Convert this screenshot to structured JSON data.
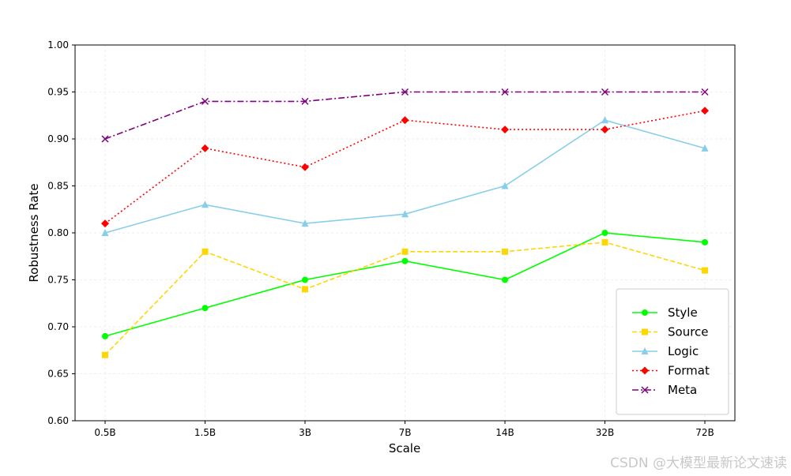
{
  "chart_data": {
    "type": "line",
    "title": "",
    "xlabel": "Scale",
    "ylabel": "Robustness Rate",
    "categories": [
      "0.5B",
      "1.5B",
      "3B",
      "7B",
      "14B",
      "32B",
      "72B"
    ],
    "ylim": [
      0.6,
      1.0
    ],
    "yticks": [
      "0.60",
      "0.65",
      "0.70",
      "0.75",
      "0.80",
      "0.85",
      "0.90",
      "0.95",
      "1.00"
    ],
    "grid": true,
    "legend_position": "bottom-right",
    "series": [
      {
        "name": "Style",
        "values": [
          0.69,
          0.72,
          0.75,
          0.77,
          0.75,
          0.8,
          0.79
        ],
        "color": "#00ff00",
        "marker": "circle",
        "dash": "solid"
      },
      {
        "name": "Source",
        "values": [
          0.67,
          0.78,
          0.74,
          0.78,
          0.78,
          0.79,
          0.76
        ],
        "color": "#ffd700",
        "marker": "square",
        "dash": "dashed"
      },
      {
        "name": "Logic",
        "values": [
          0.8,
          0.83,
          0.81,
          0.82,
          0.85,
          0.92,
          0.89
        ],
        "color": "#87ceeb",
        "marker": "triangle",
        "dash": "solid"
      },
      {
        "name": "Format",
        "values": [
          0.81,
          0.89,
          0.87,
          0.92,
          0.91,
          0.91,
          0.93
        ],
        "color": "#ff0000",
        "marker": "diamond",
        "dash": "dotted"
      },
      {
        "name": "Meta",
        "values": [
          0.9,
          0.94,
          0.94,
          0.95,
          0.95,
          0.95,
          0.95
        ],
        "color": "#800080",
        "marker": "x",
        "dash": "dashdot"
      }
    ]
  },
  "watermark": "CSDN @大模型最新论文速读"
}
